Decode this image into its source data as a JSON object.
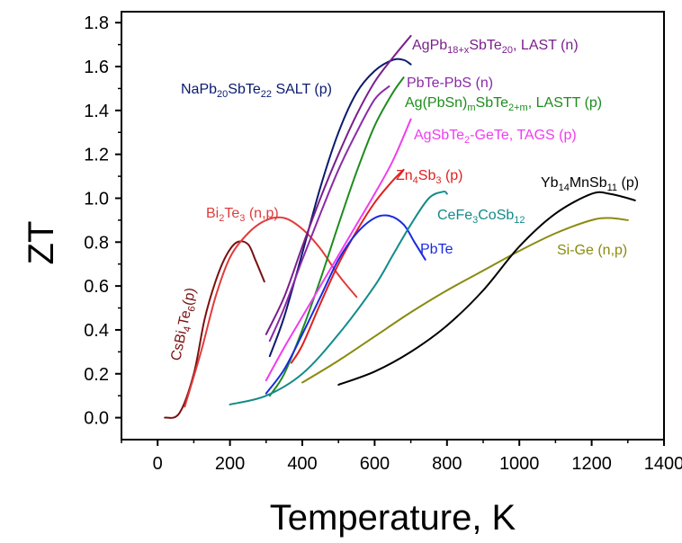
{
  "chart_data": {
    "type": "line",
    "xlabel": "Temperature, K",
    "ylabel": "ZT",
    "xlim": [
      -100,
      1400
    ],
    "ylim": [
      -0.1,
      1.85
    ],
    "x_ticks": [
      0,
      200,
      400,
      600,
      800,
      1000,
      1200,
      1400
    ],
    "y_ticks": [
      0.0,
      0.2,
      0.4,
      0.6,
      0.8,
      1.0,
      1.2,
      1.4,
      1.6,
      1.8
    ],
    "x_tick_labels": [
      "0",
      "200",
      "400",
      "600",
      "800",
      "1000",
      "1200",
      "1400"
    ],
    "y_tick_labels": [
      "0.0",
      "0.2",
      "0.4",
      "0.6",
      "0.8",
      "1.0",
      "1.2",
      "1.4",
      "1.6",
      "1.8"
    ],
    "grid": false,
    "legend": "inline labels",
    "series": [
      {
        "id": "csbi4te6",
        "label_parts": [
          [
            "CsBi",
            ""
          ],
          [
            "4",
            "sub"
          ],
          [
            "Te",
            ""
          ],
          [
            "6",
            "sub"
          ],
          [
            "(p)",
            ""
          ]
        ],
        "color": "#7a1010",
        "label_rotation": -78,
        "points": [
          [
            20,
            0.0
          ],
          [
            60,
            0.02
          ],
          [
            100,
            0.2
          ],
          [
            130,
            0.45
          ],
          [
            160,
            0.62
          ],
          [
            190,
            0.74
          ],
          [
            220,
            0.8
          ],
          [
            250,
            0.79
          ],
          [
            270,
            0.72
          ],
          [
            295,
            0.62
          ]
        ]
      },
      {
        "id": "bi2te3",
        "label_parts": [
          [
            "Bi",
            ""
          ],
          [
            "2",
            "sub"
          ],
          [
            "Te",
            ""
          ],
          [
            "3",
            "sub"
          ],
          [
            " (n,p)",
            ""
          ]
        ],
        "color": "#e03c3c",
        "label_rotation": 0,
        "points": [
          [
            75,
            0.05
          ],
          [
            120,
            0.3
          ],
          [
            160,
            0.55
          ],
          [
            200,
            0.73
          ],
          [
            250,
            0.84
          ],
          [
            300,
            0.9
          ],
          [
            350,
            0.91
          ],
          [
            400,
            0.86
          ],
          [
            450,
            0.77
          ],
          [
            500,
            0.65
          ],
          [
            550,
            0.55
          ]
        ]
      },
      {
        "id": "nasalt",
        "label_parts": [
          [
            "NaPb",
            ""
          ],
          [
            "20",
            "sub"
          ],
          [
            "SbTe",
            ""
          ],
          [
            "22",
            "sub"
          ],
          [
            " SALT (p)",
            ""
          ]
        ],
        "color": "#0a1a6e",
        "label_rotation": 0,
        "points": [
          [
            310,
            0.28
          ],
          [
            350,
            0.46
          ],
          [
            400,
            0.75
          ],
          [
            450,
            1.05
          ],
          [
            500,
            1.3
          ],
          [
            550,
            1.48
          ],
          [
            600,
            1.58
          ],
          [
            650,
            1.63
          ],
          [
            680,
            1.63
          ],
          [
            700,
            1.61
          ]
        ]
      },
      {
        "id": "last",
        "label_parts": [
          [
            "AgPb",
            ""
          ],
          [
            "18+x",
            "sub"
          ],
          [
            "SbTe",
            ""
          ],
          [
            "20",
            "sub"
          ],
          [
            ", LAST (n)",
            ""
          ]
        ],
        "color": "#7a1f8c",
        "label_rotation": 0,
        "points": [
          [
            300,
            0.38
          ],
          [
            350,
            0.55
          ],
          [
            400,
            0.78
          ],
          [
            450,
            1.0
          ],
          [
            500,
            1.2
          ],
          [
            550,
            1.38
          ],
          [
            600,
            1.53
          ],
          [
            650,
            1.64
          ],
          [
            700,
            1.74
          ]
        ]
      },
      {
        "id": "pbtepbs",
        "label_parts": [
          [
            "PbTe-PbS (n)",
            ""
          ]
        ],
        "color": "#8a2aa8",
        "label_rotation": 0,
        "points": [
          [
            310,
            0.35
          ],
          [
            350,
            0.5
          ],
          [
            400,
            0.72
          ],
          [
            450,
            0.93
          ],
          [
            500,
            1.13
          ],
          [
            550,
            1.3
          ],
          [
            600,
            1.45
          ],
          [
            640,
            1.51
          ]
        ]
      },
      {
        "id": "lastt",
        "label_parts": [
          [
            "Ag(PbSn)",
            ""
          ],
          [
            "m",
            "sub"
          ],
          [
            "SbTe",
            ""
          ],
          [
            "2+m",
            "sub"
          ],
          [
            ", LASTT (p)",
            ""
          ]
        ],
        "color": "#1e8c1e",
        "label_rotation": 0,
        "points": [
          [
            310,
            0.1
          ],
          [
            350,
            0.2
          ],
          [
            400,
            0.4
          ],
          [
            450,
            0.63
          ],
          [
            500,
            0.88
          ],
          [
            550,
            1.12
          ],
          [
            600,
            1.33
          ],
          [
            650,
            1.48
          ],
          [
            680,
            1.55
          ]
        ]
      },
      {
        "id": "tags",
        "label_parts": [
          [
            "AgSbTe",
            ""
          ],
          [
            "2",
            "sub"
          ],
          [
            "-GeTe, TAGS (p)",
            ""
          ]
        ],
        "color": "#f03cf0",
        "label_rotation": 0,
        "points": [
          [
            300,
            0.17
          ],
          [
            350,
            0.32
          ],
          [
            400,
            0.46
          ],
          [
            450,
            0.6
          ],
          [
            500,
            0.74
          ],
          [
            550,
            0.88
          ],
          [
            600,
            1.02
          ],
          [
            650,
            1.17
          ],
          [
            700,
            1.36
          ]
        ]
      },
      {
        "id": "zn4sb3",
        "label_parts": [
          [
            "Zn",
            ""
          ],
          [
            "4",
            "sub"
          ],
          [
            "Sb",
            ""
          ],
          [
            "3",
            "sub"
          ],
          [
            " (p)",
            ""
          ]
        ],
        "color": "#e02020",
        "label_rotation": 0,
        "points": [
          [
            370,
            0.25
          ],
          [
            400,
            0.33
          ],
          [
            450,
            0.52
          ],
          [
            500,
            0.7
          ],
          [
            550,
            0.85
          ],
          [
            600,
            0.98
          ],
          [
            650,
            1.08
          ],
          [
            680,
            1.13
          ]
        ]
      },
      {
        "id": "pbte",
        "label_parts": [
          [
            "PbTe",
            ""
          ]
        ],
        "color": "#1a2ae0",
        "label_rotation": 0,
        "points": [
          [
            300,
            0.11
          ],
          [
            350,
            0.22
          ],
          [
            400,
            0.38
          ],
          [
            450,
            0.55
          ],
          [
            500,
            0.72
          ],
          [
            550,
            0.84
          ],
          [
            600,
            0.91
          ],
          [
            640,
            0.92
          ],
          [
            680,
            0.88
          ],
          [
            710,
            0.8
          ],
          [
            740,
            0.72
          ]
        ]
      },
      {
        "id": "cefe3cosb12",
        "label_parts": [
          [
            "CeFe",
            ""
          ],
          [
            "3",
            "sub"
          ],
          [
            "CoSb",
            ""
          ],
          [
            "12",
            "sub"
          ]
        ],
        "color": "#138a8a",
        "label_rotation": 0,
        "points": [
          [
            200,
            0.06
          ],
          [
            300,
            0.1
          ],
          [
            400,
            0.2
          ],
          [
            500,
            0.38
          ],
          [
            600,
            0.6
          ],
          [
            650,
            0.74
          ],
          [
            700,
            0.88
          ],
          [
            750,
            1.0
          ],
          [
            790,
            1.03
          ],
          [
            800,
            1.02
          ]
        ]
      },
      {
        "id": "sige",
        "label_parts": [
          [
            "Si-Ge (n,p)",
            ""
          ]
        ],
        "color": "#8a8a10",
        "label_rotation": 0,
        "points": [
          [
            400,
            0.16
          ],
          [
            500,
            0.26
          ],
          [
            600,
            0.37
          ],
          [
            700,
            0.48
          ],
          [
            800,
            0.58
          ],
          [
            900,
            0.67
          ],
          [
            1000,
            0.76
          ],
          [
            1100,
            0.84
          ],
          [
            1200,
            0.9
          ],
          [
            1250,
            0.91
          ],
          [
            1300,
            0.9
          ]
        ]
      },
      {
        "id": "yb14mnsb11",
        "label_parts": [
          [
            "Yb",
            ""
          ],
          [
            "14",
            "sub"
          ],
          [
            "MnSb",
            ""
          ],
          [
            "11",
            "sub"
          ],
          [
            " (p)",
            ""
          ]
        ],
        "color": "#000000",
        "label_rotation": 0,
        "points": [
          [
            500,
            0.15
          ],
          [
            600,
            0.21
          ],
          [
            700,
            0.3
          ],
          [
            800,
            0.42
          ],
          [
            900,
            0.58
          ],
          [
            1000,
            0.78
          ],
          [
            1100,
            0.93
          ],
          [
            1200,
            1.02
          ],
          [
            1250,
            1.02
          ],
          [
            1300,
            1.0
          ],
          [
            1320,
            0.99
          ]
        ]
      }
    ]
  }
}
